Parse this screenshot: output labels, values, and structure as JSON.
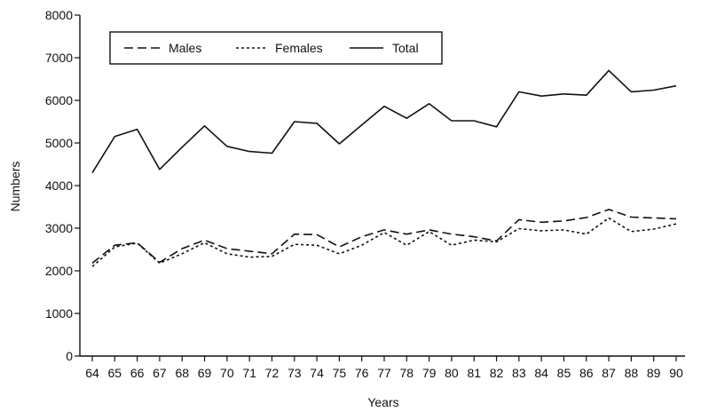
{
  "chart_data": {
    "type": "line",
    "xlabel": "Years",
    "ylabel": "Numbers",
    "ylim": [
      0,
      8000
    ],
    "yticks": [
      0,
      1000,
      2000,
      3000,
      4000,
      5000,
      6000,
      7000,
      8000
    ],
    "grid": false,
    "legend_position": "top-left",
    "categories": [
      "64",
      "65",
      "66",
      "67",
      "68",
      "69",
      "70",
      "71",
      "72",
      "73",
      "74",
      "75",
      "76",
      "77",
      "78",
      "79",
      "80",
      "81",
      "82",
      "83",
      "84",
      "85",
      "86",
      "87",
      "88",
      "89",
      "90"
    ],
    "series": [
      {
        "name": "Males",
        "style": "dashed",
        "values": [
          2180,
          2600,
          2660,
          2200,
          2520,
          2720,
          2520,
          2460,
          2400,
          2860,
          2850,
          2560,
          2800,
          2960,
          2860,
          2960,
          2860,
          2800,
          2700,
          3200,
          3140,
          3170,
          3250,
          3440,
          3260,
          3240,
          3220
        ]
      },
      {
        "name": "Females",
        "style": "dotted",
        "values": [
          2100,
          2560,
          2650,
          2180,
          2400,
          2660,
          2400,
          2320,
          2340,
          2620,
          2600,
          2400,
          2600,
          2900,
          2600,
          2920,
          2600,
          2720,
          2680,
          2990,
          2940,
          2960,
          2860,
          3240,
          2920,
          2980,
          3100
        ]
      },
      {
        "name": "Total",
        "style": "solid",
        "values": [
          4300,
          5150,
          5320,
          4380,
          4900,
          5400,
          4920,
          4800,
          4760,
          5500,
          5460,
          4980,
          5420,
          5860,
          5580,
          5920,
          5520,
          5520,
          5380,
          6200,
          6100,
          6150,
          6120,
          6700,
          6200,
          6240,
          6340
        ]
      }
    ]
  }
}
